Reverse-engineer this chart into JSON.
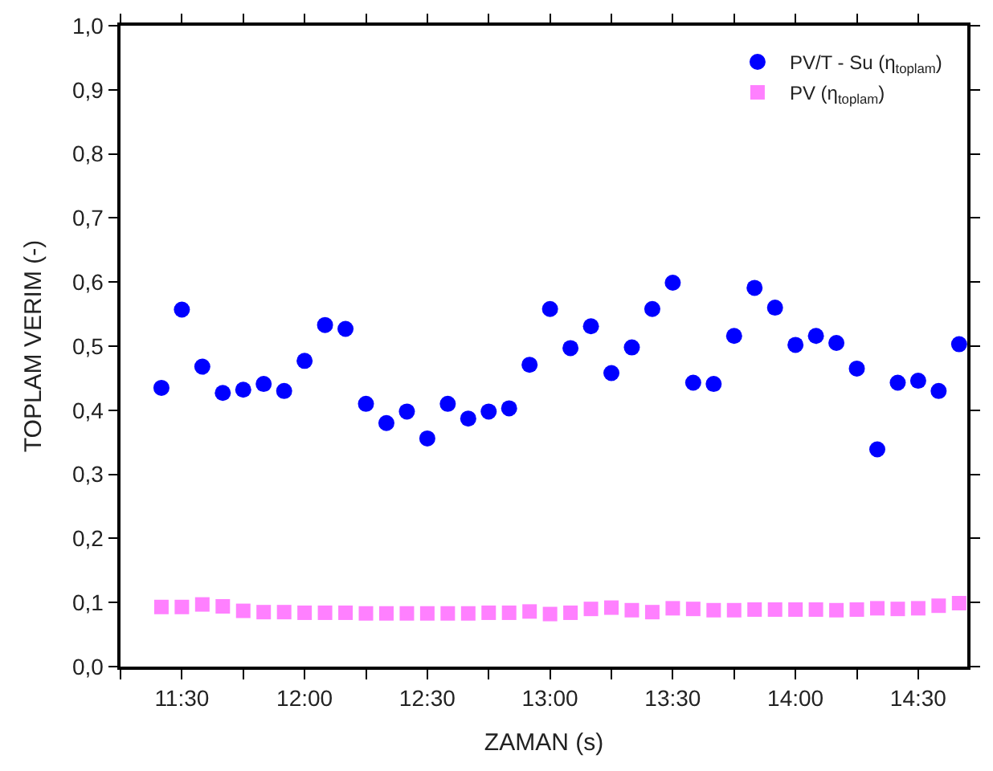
{
  "chart_data": {
    "type": "scatter",
    "xlabel": "ZAMAN (s)",
    "ylabel": "TOPLAM VERIM (-)",
    "x": [
      11.4167,
      11.5,
      11.5833,
      11.6667,
      11.75,
      11.8333,
      11.9167,
      12,
      12.0833,
      12.1667,
      12.25,
      12.3333,
      12.4167,
      12.5,
      12.5833,
      12.6667,
      12.75,
      12.8333,
      12.9167,
      13,
      13.0833,
      13.1667,
      13.25,
      13.3333,
      13.4167,
      13.5,
      13.5833,
      13.6667,
      13.75,
      13.8333,
      13.9167,
      14,
      14.0833,
      14.1667,
      14.25,
      14.3333,
      14.4167,
      14.5,
      14.5833,
      14.6667
    ],
    "series": [
      {
        "name": "PV/T - Su (η$_{toplam}$)",
        "color": "#0000ff",
        "marker": "circle",
        "values": [
          0.435,
          0.557,
          0.468,
          0.427,
          0.432,
          0.441,
          0.43,
          0.477,
          0.533,
          0.527,
          0.41,
          0.38,
          0.398,
          0.356,
          0.41,
          0.387,
          0.398,
          0.403,
          0.471,
          0.558,
          0.497,
          0.531,
          0.458,
          0.498,
          0.558,
          0.599,
          0.443,
          0.441,
          0.516,
          0.591,
          0.56,
          0.502,
          0.516,
          0.505,
          0.465,
          0.339,
          0.443,
          0.446,
          0.43,
          0.503
        ]
      },
      {
        "name": "PV (η$_{toplam}$)",
        "color": "#ff80ff",
        "marker": "square",
        "values": [
          0.093,
          0.093,
          0.097,
          0.094,
          0.087,
          0.085,
          0.085,
          0.084,
          0.084,
          0.084,
          0.083,
          0.083,
          0.083,
          0.083,
          0.083,
          0.083,
          0.084,
          0.084,
          0.086,
          0.082,
          0.084,
          0.09,
          0.092,
          0.088,
          0.085,
          0.091,
          0.09,
          0.088,
          0.088,
          0.089,
          0.089,
          0.089,
          0.089,
          0.088,
          0.089,
          0.091,
          0.09,
          0.091,
          0.095,
          0.099
        ]
      }
    ],
    "xlim": [
      11.25,
      14.7
    ],
    "xticks": [
      {
        "value": 11.25,
        "label": null
      },
      {
        "value": 11.5,
        "label": "11:30"
      },
      {
        "value": 11.75,
        "label": null
      },
      {
        "value": 12,
        "label": "12:00"
      },
      {
        "value": 12.25,
        "label": null
      },
      {
        "value": 12.5,
        "label": "12:30"
      },
      {
        "value": 12.75,
        "label": null
      },
      {
        "value": 13,
        "label": "13:00"
      },
      {
        "value": 13.25,
        "label": null
      },
      {
        "value": 13.5,
        "label": "13:30"
      },
      {
        "value": 13.75,
        "label": null
      },
      {
        "value": 14,
        "label": "14:00"
      },
      {
        "value": 14.25,
        "label": null
      },
      {
        "value": 14.5,
        "label": "14:30"
      }
    ],
    "ylim": [
      0,
      1
    ],
    "yticks": [
      {
        "value": 0,
        "label": "0,0"
      },
      {
        "value": 0.1,
        "label": "0,1"
      },
      {
        "value": 0.2,
        "label": "0,2"
      },
      {
        "value": 0.3,
        "label": "0,3"
      },
      {
        "value": 0.4,
        "label": "0,4"
      },
      {
        "value": 0.5,
        "label": "0,5"
      },
      {
        "value": 0.6,
        "label": "0,6"
      },
      {
        "value": 0.7,
        "label": "0,7"
      },
      {
        "value": 0.8,
        "label": "0,8"
      },
      {
        "value": 0.9,
        "label": "0,9"
      },
      {
        "value": 1,
        "label": "1,0"
      }
    ],
    "legend": "top right"
  }
}
